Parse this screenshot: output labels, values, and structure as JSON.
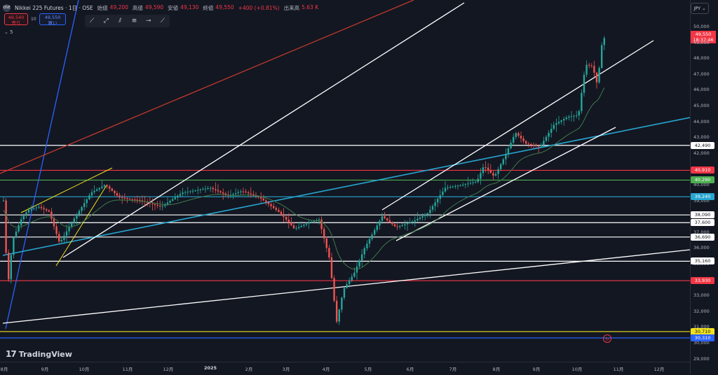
{
  "header": {
    "symbol_icon": "OSE",
    "title": "Nikkei 225 Futures · 1日 · OSE",
    "ohlc": [
      {
        "label": "始値",
        "value": "49,200"
      },
      {
        "label": "高値",
        "value": "49,590"
      },
      {
        "label": "安値",
        "value": "49,130"
      },
      {
        "label": "終値",
        "value": "49,550"
      },
      {
        "label": "",
        "value": "+400 (+0.81%)"
      },
      {
        "label": "出来高",
        "value": "5.63 K"
      }
    ]
  },
  "trade": {
    "sell_price": "49,540",
    "sell_label": "売り",
    "spread": "10",
    "buy_price": "49,550",
    "buy_label": "買い"
  },
  "indicator_count": "5",
  "toolbar_icons": [
    "trend-line-icon",
    "ray-icon",
    "parallel-channel-icon",
    "fib-retracement-icon",
    "horizontal-ray-icon",
    "extended-line-icon"
  ],
  "currency": "JPY",
  "price_axis": {
    "ticks": [
      "50,000",
      "49,000",
      "48,000",
      "47,000",
      "46,000",
      "45,000",
      "44,000",
      "43,000",
      "42,000",
      "41,000",
      "40,000",
      "39,000",
      "38,000",
      "37,000",
      "36,000",
      "35,000",
      "34,000",
      "33,000",
      "32,000",
      "31,000",
      "30,000",
      "29,000"
    ],
    "current_price": "49,550",
    "countdown": "18:37:46"
  },
  "levels": [
    {
      "price": 42490,
      "label": "42,490",
      "color": "#ffffff"
    },
    {
      "price": 40910,
      "label": "40,910",
      "color": "#f23645"
    },
    {
      "price": 40290,
      "label": "40,290",
      "color": "#4caf50"
    },
    {
      "price": 39240,
      "label": "39,240",
      "color": "#26a6d1"
    },
    {
      "price": 38090,
      "label": "38,090",
      "color": "#ffffff"
    },
    {
      "price": 37600,
      "label": "37,600",
      "color": "#ffffff"
    },
    {
      "price": 36690,
      "label": "36,690",
      "color": "#ffffff"
    },
    {
      "price": 35160,
      "label": "35,160",
      "color": "#ffffff"
    },
    {
      "price": 33930,
      "label": "33,930",
      "color": "#f23645"
    },
    {
      "price": 30710,
      "label": "30,710",
      "color": "#f2e21d"
    },
    {
      "price": 30310,
      "label": "30,310",
      "color": "#2962ff"
    }
  ],
  "time_axis": [
    "8月",
    "9月",
    "10月",
    "11月",
    "12月",
    "2025",
    "2月",
    "3月",
    "4月",
    "5月",
    "6月",
    "7月",
    "8月",
    "9月",
    "10月",
    "11月",
    "12月"
  ],
  "branding": {
    "logo_mark": "17",
    "logo_text": "TradingView"
  },
  "colors": {
    "up": "#26a69a",
    "down": "#ef5350",
    "background": "#131722",
    "ma": "#3e7a49"
  }
}
